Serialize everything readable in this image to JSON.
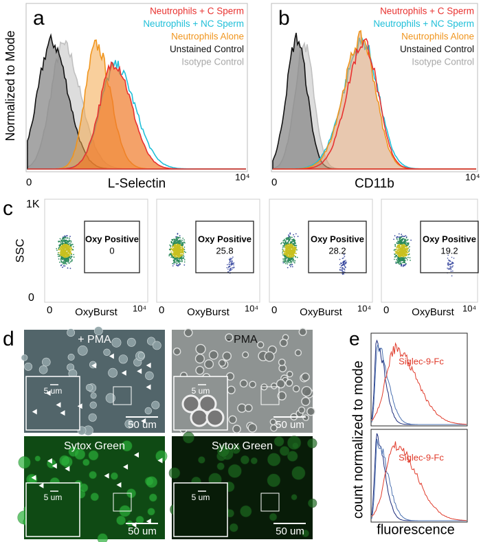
{
  "panel_a": {
    "label": "a",
    "y_label": "Normalized to Mode",
    "x_label": "L-Selectin",
    "x_start": "0",
    "x_end": "10⁴",
    "legend": [
      {
        "text": "Neutrophils + C Sperm",
        "color": "#e8312f"
      },
      {
        "text": "Neutrophils + NC Sperm",
        "color": "#1fbfd8"
      },
      {
        "text": "Neutrophils Alone",
        "color": "#f0951e"
      },
      {
        "text": "Unstained Control",
        "color": "#111111"
      },
      {
        "text": "Isotype Control",
        "color": "#a8a8a8"
      }
    ]
  },
  "panel_b": {
    "label": "b",
    "x_label": "CD11b",
    "x_start": "0",
    "x_end": "10⁴",
    "legend": [
      {
        "text": "Neutrophils + C Sperm",
        "color": "#e8312f"
      },
      {
        "text": "Neutrophils + NC Sperm",
        "color": "#1fbfd8"
      },
      {
        "text": "Neutrophils Alone",
        "color": "#f0951e"
      },
      {
        "text": "Unstained Control",
        "color": "#111111"
      },
      {
        "text": "Isotype Control",
        "color": "#a8a8a8"
      }
    ]
  },
  "panel_c": {
    "label": "c",
    "y_label": "SSC",
    "y_top": "1K",
    "y_start": "0",
    "plots": [
      {
        "x_label": "OxyBurst",
        "x_start": "0",
        "x_end": "10⁴",
        "gate_label": "Oxy Positive",
        "gate_value": "0"
      },
      {
        "x_label": "OxyBurst",
        "x_start": "0",
        "x_end": "10⁴",
        "gate_label": "Oxy Positive",
        "gate_value": "25.8"
      },
      {
        "x_label": "OxyBurst",
        "x_start": "0",
        "x_end": "10⁴",
        "gate_label": "Oxy Positive",
        "gate_value": "28.2"
      },
      {
        "x_label": "OxyBurst",
        "x_start": "0",
        "x_end": "10⁴",
        "gate_label": "Oxy Positive",
        "gate_value": "19.2"
      }
    ]
  },
  "panel_d": {
    "label": "d",
    "images": [
      {
        "caption": "+ PMA",
        "inset_scale": "5 um",
        "scale": "50 um"
      },
      {
        "caption": "- PMA",
        "inset_scale": "5 um",
        "scale": "50 um"
      },
      {
        "caption": "Sytox Green",
        "inset_scale": "5 um",
        "scale": "50 um"
      },
      {
        "caption": "Sytox Green",
        "inset_scale": "5 um",
        "scale": "50 um"
      }
    ]
  },
  "panel_e": {
    "label": "e",
    "y_label": "count normalized to mode",
    "x_label": "fluorescence",
    "plots": [
      {
        "legend": "Siglec-9-Fc"
      },
      {
        "legend": "Siglec-9-Fc"
      }
    ]
  }
}
